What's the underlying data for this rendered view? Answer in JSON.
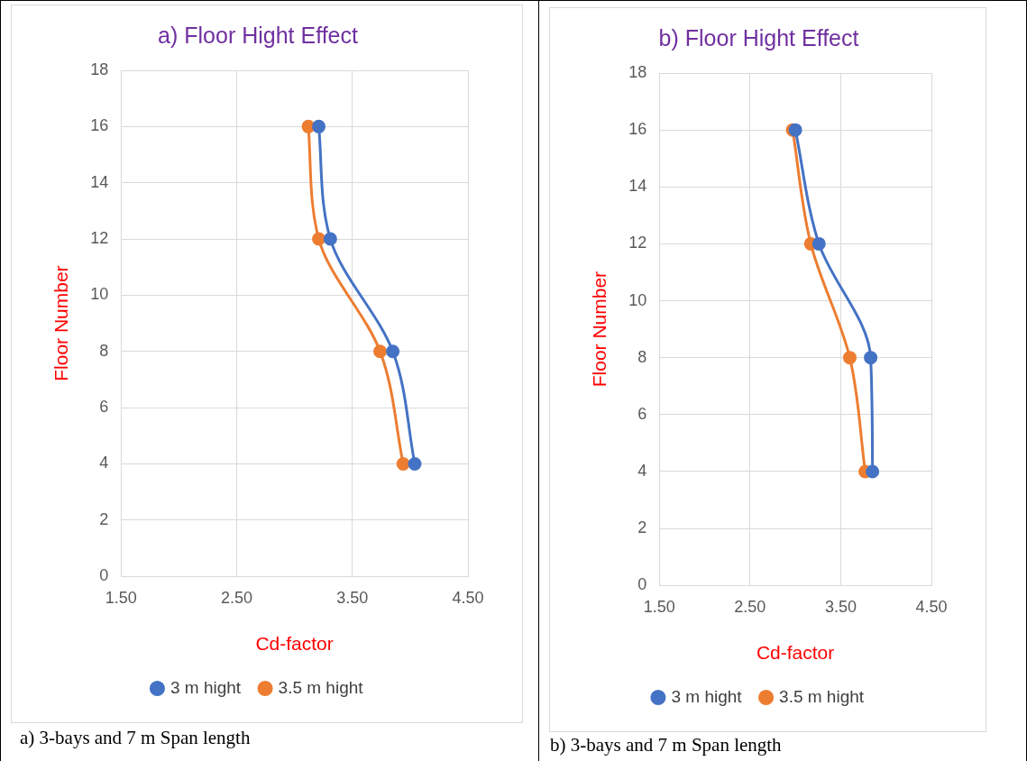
{
  "chart_data": [
    {
      "type": "line",
      "title": "a) Floor Hight Effect",
      "xlabel": "Cd-factor",
      "ylabel": "Floor Number",
      "xlim": [
        1.5,
        4.5
      ],
      "xticks": [
        {
          "value": 1.5,
          "label": "1.50"
        },
        {
          "value": 2.5,
          "label": "2.50"
        },
        {
          "value": 3.5,
          "label": "3.50"
        },
        {
          "value": 4.5,
          "label": "4.50"
        }
      ],
      "ylim": [
        0,
        18
      ],
      "yticks": [
        0,
        2,
        4,
        6,
        8,
        10,
        12,
        14,
        16,
        18
      ],
      "grid": true,
      "legend": "bottom",
      "marker": "circle",
      "annotations": [
        "a) 3-bays and 7 m Span length"
      ],
      "series": [
        {
          "name": "3 m hight",
          "color": "#4472c4",
          "x": [
            3.21,
            3.31,
            3.85,
            4.04
          ],
          "values": [
            16,
            12,
            8,
            4
          ]
        },
        {
          "name": "3.5 m hight",
          "color": "#ed7d31",
          "x": [
            3.12,
            3.21,
            3.74,
            3.94
          ],
          "values": [
            16,
            12,
            8,
            4
          ]
        }
      ]
    },
    {
      "type": "line",
      "title": "b) Floor Hight Effect",
      "xlabel": "Cd-factor",
      "ylabel": "Floor Number",
      "xlim": [
        1.5,
        4.5
      ],
      "xticks": [
        {
          "value": 1.5,
          "label": "1.50"
        },
        {
          "value": 2.5,
          "label": "2.50"
        },
        {
          "value": 3.5,
          "label": "3.50"
        },
        {
          "value": 4.5,
          "label": "4.50"
        }
      ],
      "ylim": [
        0,
        18
      ],
      "yticks": [
        0,
        2,
        4,
        6,
        8,
        10,
        12,
        14,
        16,
        18
      ],
      "grid": true,
      "legend": "bottom",
      "marker": "circle",
      "annotations": [
        "b) 3-bays and 7 m Span length"
      ],
      "series": [
        {
          "name": "3 m hight",
          "color": "#4472c4",
          "x": [
            3.0,
            3.26,
            3.83,
            3.85
          ],
          "values": [
            16,
            12,
            8,
            4
          ]
        },
        {
          "name": "3.5 m hight",
          "color": "#ed7d31",
          "x": [
            2.97,
            3.17,
            3.6,
            3.77
          ],
          "values": [
            16,
            12,
            8,
            4
          ]
        }
      ]
    }
  ]
}
